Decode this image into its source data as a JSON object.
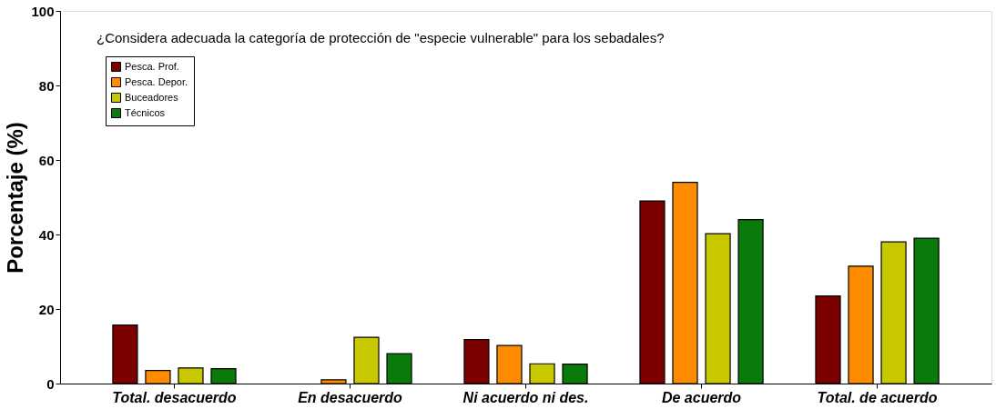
{
  "chart_data": {
    "type": "bar",
    "title": "¿Considera adecuada la categoría de protección de \"especie vulnerable\" para los sebadales?",
    "ylabel": "Porcentaje (%)",
    "categories": [
      "Total. desacuerdo",
      "En desacuerdo",
      "Ni acuerdo ni des.",
      "De acuerdo",
      "Total. de acuerdo"
    ],
    "series": [
      {
        "name": "Pesca. Prof.",
        "color": "#7b0000",
        "values": [
          15.7,
          null,
          11.8,
          49,
          23.5
        ]
      },
      {
        "name": "Pesca. Depor.",
        "color": "#ff8c00",
        "values": [
          3.5,
          1.0,
          10.2,
          54,
          31.5
        ]
      },
      {
        "name": "Buceadores",
        "color": "#c8c800",
        "values": [
          4.2,
          12.4,
          5.3,
          40.2,
          38
        ]
      },
      {
        "name": "Técnicos",
        "color": "#0a7a0a",
        "values": [
          4.0,
          8.0,
          5.2,
          44,
          39
        ]
      }
    ],
    "ylim": [
      0,
      100
    ],
    "yticks": [
      0,
      20,
      40,
      60,
      80,
      100
    ],
    "grid": false,
    "legend": "top left"
  }
}
